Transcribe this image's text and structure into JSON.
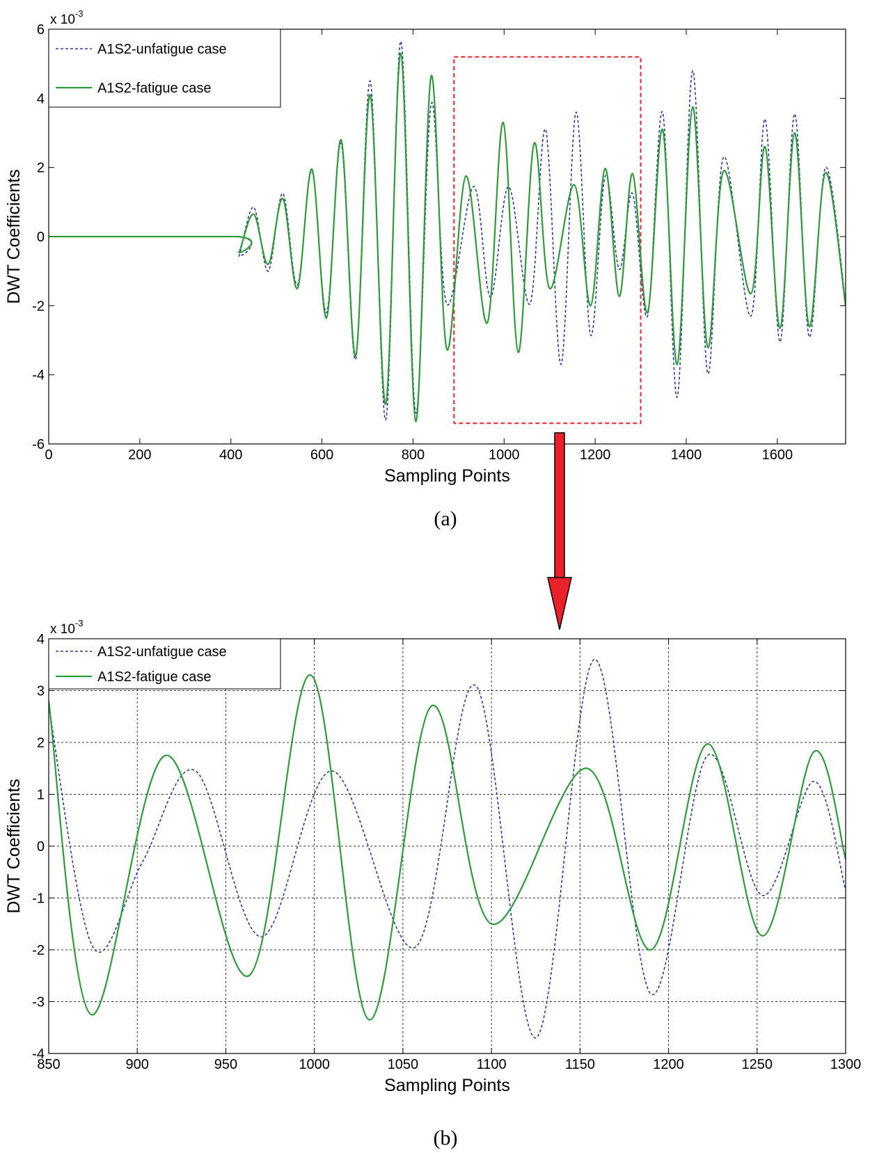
{
  "arrow_color": "#e8212a",
  "chart_data": [
    {
      "type": "line",
      "caption": "(a)",
      "xlabel": "Sampling Points",
      "ylabel": "DWT Coefficients",
      "y_exponent_label": "x 10",
      "y_exponent_power": "-3",
      "xlim": [
        0,
        1750
      ],
      "ylim": [
        -6,
        6
      ],
      "xticks": [
        0,
        200,
        400,
        600,
        800,
        1000,
        1200,
        1400,
        1600
      ],
      "yticks": [
        -6,
        -4,
        -2,
        0,
        2,
        4,
        6
      ],
      "grid": false,
      "legend_position": "top-left",
      "highlight_region": {
        "x": [
          890,
          1300
        ],
        "y": [
          -5.4,
          5.2
        ],
        "color": "#e8212a",
        "style": "dashed"
      },
      "series": [
        {
          "name": "A1S2-unfatigue case",
          "color": "#2b3a9f",
          "style": "dashed",
          "points": [
            [
              0,
              0
            ],
            [
              415,
              0
            ],
            [
              418,
              -0.55
            ],
            [
              450,
              0.85
            ],
            [
              482,
              -1.0
            ],
            [
              514,
              1.25
            ],
            [
              546,
              -1.4
            ],
            [
              578,
              1.9
            ],
            [
              610,
              -2.2
            ],
            [
              642,
              2.7
            ],
            [
              674,
              -3.55
            ],
            [
              706,
              4.5
            ],
            [
              740,
              -5.3
            ],
            [
              773,
              5.65
            ],
            [
              806,
              -5.1
            ],
            [
              840,
              3.85
            ],
            [
              874,
              -1.95
            ],
            [
              933,
              1.45
            ],
            [
              970,
              -1.75
            ],
            [
              1010,
              1.45
            ],
            [
              1057,
              -1.95
            ],
            [
              1091,
              3.1
            ],
            [
              1125,
              -3.7
            ],
            [
              1158,
              3.6
            ],
            [
              1190,
              -2.85
            ],
            [
              1222,
              1.75
            ],
            [
              1253,
              -0.95
            ],
            [
              1282,
              1.25
            ],
            [
              1315,
              -2.3
            ],
            [
              1348,
              3.6
            ],
            [
              1380,
              -4.65
            ],
            [
              1414,
              4.8
            ],
            [
              1447,
              -3.95
            ],
            [
              1482,
              2.3
            ],
            [
              1542,
              -2.3
            ],
            [
              1573,
              3.4
            ],
            [
              1606,
              -3.05
            ],
            [
              1638,
              3.55
            ],
            [
              1670,
              -2.9
            ],
            [
              1706,
              2.0
            ],
            [
              1750,
              -1.9
            ]
          ]
        },
        {
          "name": "A1S2-fatigue case",
          "color": "#2f9a3a",
          "style": "solid",
          "points": [
            [
              0,
              0
            ],
            [
              415,
              0
            ],
            [
              418,
              -0.45
            ],
            [
              450,
              0.65
            ],
            [
              482,
              -0.8
            ],
            [
              514,
              1.1
            ],
            [
              546,
              -1.5
            ],
            [
              578,
              1.95
            ],
            [
              610,
              -2.35
            ],
            [
              642,
              2.8
            ],
            [
              674,
              -3.45
            ],
            [
              706,
              4.1
            ],
            [
              740,
              -4.85
            ],
            [
              773,
              5.3
            ],
            [
              806,
              -5.35
            ],
            [
              840,
              4.65
            ],
            [
              874,
              -3.25
            ],
            [
              916,
              1.75
            ],
            [
              963,
              -2.5
            ],
            [
              998,
              3.3
            ],
            [
              1031,
              -3.35
            ],
            [
              1066,
              2.7
            ],
            [
              1100,
              -1.5
            ],
            [
              1154,
              1.5
            ],
            [
              1190,
              -2.0
            ],
            [
              1222,
              1.97
            ],
            [
              1253,
              -1.73
            ],
            [
              1282,
              1.82
            ],
            [
              1315,
              -2.2
            ],
            [
              1348,
              3.1
            ],
            [
              1380,
              -3.7
            ],
            [
              1414,
              3.75
            ],
            [
              1447,
              -3.2
            ],
            [
              1482,
              1.9
            ],
            [
              1542,
              -1.65
            ],
            [
              1573,
              2.6
            ],
            [
              1606,
              -2.65
            ],
            [
              1638,
              3.0
            ],
            [
              1670,
              -2.6
            ],
            [
              1706,
              1.85
            ],
            [
              1750,
              -2.0
            ]
          ]
        }
      ]
    },
    {
      "type": "line",
      "caption": "(b)",
      "xlabel": "Sampling Points",
      "ylabel": "DWT Coefficients",
      "y_exponent_label": "x 10",
      "y_exponent_power": "-3",
      "xlim": [
        850,
        1300
      ],
      "ylim": [
        -4,
        4
      ],
      "xticks": [
        850,
        900,
        950,
        1000,
        1050,
        1100,
        1150,
        1200,
        1250,
        1300
      ],
      "yticks": [
        -4,
        -3,
        -2,
        -1,
        0,
        1,
        2,
        3,
        4
      ],
      "grid": true,
      "legend_position": "top-left",
      "series": [
        {
          "name": "A1S2-unfatigue case",
          "color": "#2b3a9f",
          "style": "dashed",
          "points": [
            [
              850,
              2.7
            ],
            [
              875,
              -1.95
            ],
            [
              903,
              -0.3
            ],
            [
              933,
              1.45
            ],
            [
              970,
              -1.75
            ],
            [
              1010,
              1.45
            ],
            [
              1057,
              -1.95
            ],
            [
              1091,
              3.1
            ],
            [
              1125,
              -3.7
            ],
            [
              1158,
              3.6
            ],
            [
              1190,
              -2.85
            ],
            [
              1222,
              1.75
            ],
            [
              1253,
              -0.95
            ],
            [
              1282,
              1.25
            ],
            [
              1300,
              -0.85
            ]
          ]
        },
        {
          "name": "A1S2-fatigue case",
          "color": "#2f9a3a",
          "style": "solid",
          "points": [
            [
              850,
              2.8
            ],
            [
              874,
              -3.25
            ],
            [
              916,
              1.75
            ],
            [
              963,
              -2.5
            ],
            [
              998,
              3.3
            ],
            [
              1031,
              -3.35
            ],
            [
              1066,
              2.7
            ],
            [
              1100,
              -1.5
            ],
            [
              1154,
              1.5
            ],
            [
              1190,
              -2.0
            ],
            [
              1222,
              1.97
            ],
            [
              1253,
              -1.73
            ],
            [
              1282,
              1.82
            ],
            [
              1300,
              -0.25
            ]
          ]
        }
      ]
    }
  ]
}
